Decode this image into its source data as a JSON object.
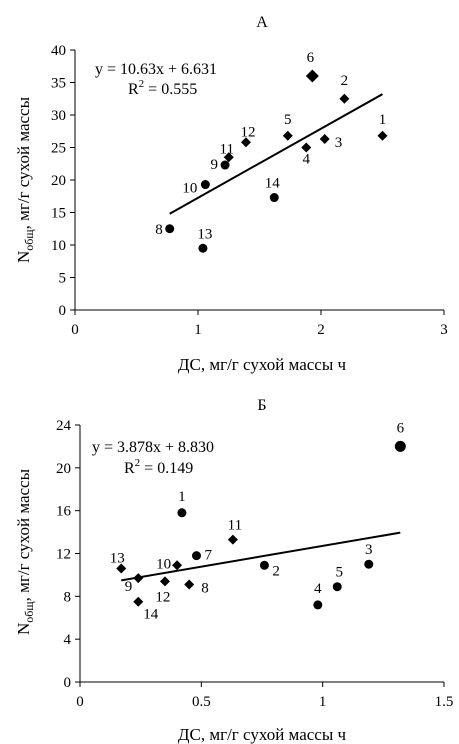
{
  "chart_data": [
    {
      "type": "scatter",
      "title": "А",
      "xlabel": "ДС, мг/г сухой массы ч",
      "ylabel_main": "N",
      "ylabel_sub": "общ",
      "ylabel_rest": ", мг/г сухой массы",
      "xlim": [
        0,
        3
      ],
      "ylim": [
        0,
        40
      ],
      "xticks": [
        0,
        1,
        2,
        3
      ],
      "yticks": [
        0,
        5,
        10,
        15,
        20,
        25,
        30,
        35,
        40
      ],
      "equation": "y = 10.63x + 6.631",
      "r2_prefix": "R",
      "r2_sup": "2",
      "r2_value": " = 0.555",
      "trendline": {
        "slope": 10.63,
        "intercept": 6.631,
        "x_range": [
          0.77,
          2.5
        ]
      },
      "points": [
        {
          "label": "1",
          "x": 2.5,
          "y": 26.8,
          "marker": "diamond"
        },
        {
          "label": "2",
          "x": 2.19,
          "y": 32.5,
          "marker": "diamond"
        },
        {
          "label": "3",
          "x": 2.03,
          "y": 26.3,
          "marker": "diamond"
        },
        {
          "label": "4",
          "x": 1.88,
          "y": 25.0,
          "marker": "diamond"
        },
        {
          "label": "5",
          "x": 1.73,
          "y": 26.8,
          "marker": "diamond"
        },
        {
          "label": "6",
          "x": 1.93,
          "y": 36.0,
          "marker": "diamond"
        },
        {
          "label": "8",
          "x": 0.77,
          "y": 12.5,
          "marker": "circle"
        },
        {
          "label": "9",
          "x": 1.22,
          "y": 22.3,
          "marker": "circle"
        },
        {
          "label": "10",
          "x": 1.06,
          "y": 19.3,
          "marker": "circle"
        },
        {
          "label": "11",
          "x": 1.25,
          "y": 23.5,
          "marker": "diamond"
        },
        {
          "label": "12",
          "x": 1.39,
          "y": 25.8,
          "marker": "diamond"
        },
        {
          "label": "13",
          "x": 1.04,
          "y": 9.5,
          "marker": "circle"
        },
        {
          "label": "14",
          "x": 1.62,
          "y": 17.3,
          "marker": "circle"
        }
      ]
    },
    {
      "type": "scatter",
      "title": "Б",
      "xlabel": "ДС, мг/г сухой массы ч",
      "ylabel_main": "N",
      "ylabel_sub": "общ",
      "ylabel_rest": ", мг/г сухой массы",
      "xlim": [
        0,
        1.5
      ],
      "ylim": [
        0,
        24
      ],
      "xticks": [
        0,
        0.5,
        1,
        1.5
      ],
      "yticks": [
        0,
        4,
        8,
        12,
        16,
        20,
        24
      ],
      "equation": "y = 3.878x + 8.830",
      "r2_prefix": "R",
      "r2_sup": "2",
      "r2_value": " = 0.149",
      "trendline": {
        "slope": 3.878,
        "intercept": 8.83,
        "x_range": [
          0.17,
          1.32
        ]
      },
      "points": [
        {
          "label": "1",
          "x": 0.42,
          "y": 15.8,
          "marker": "circle"
        },
        {
          "label": "2",
          "x": 0.76,
          "y": 10.9,
          "marker": "circle"
        },
        {
          "label": "3",
          "x": 1.19,
          "y": 11.0,
          "marker": "circle"
        },
        {
          "label": "4",
          "x": 0.98,
          "y": 7.2,
          "marker": "circle"
        },
        {
          "label": "5",
          "x": 1.06,
          "y": 8.9,
          "marker": "circle"
        },
        {
          "label": "6",
          "x": 1.32,
          "y": 22.0,
          "marker": "circle"
        },
        {
          "label": "7",
          "x": 0.48,
          "y": 11.8,
          "marker": "circle"
        },
        {
          "label": "8",
          "x": 0.45,
          "y": 9.1,
          "marker": "diamond"
        },
        {
          "label": "9",
          "x": 0.24,
          "y": 9.7,
          "marker": "diamond"
        },
        {
          "label": "10",
          "x": 0.4,
          "y": 10.9,
          "marker": "diamond"
        },
        {
          "label": "11",
          "x": 0.63,
          "y": 13.3,
          "marker": "diamond"
        },
        {
          "label": "12",
          "x": 0.35,
          "y": 9.4,
          "marker": "diamond"
        },
        {
          "label": "13",
          "x": 0.17,
          "y": 10.6,
          "marker": "diamond"
        },
        {
          "label": "14",
          "x": 0.24,
          "y": 7.5,
          "marker": "diamond"
        }
      ]
    }
  ]
}
